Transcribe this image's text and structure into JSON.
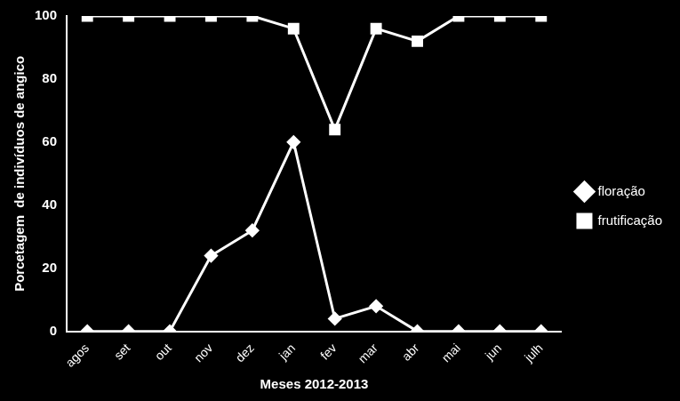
{
  "chart_data": {
    "type": "line",
    "x_label": "Meses 2012-2013",
    "y_label": "Porcetagem  de indivíduos de angico",
    "categories": [
      "agos",
      "set",
      "out",
      "nov",
      "dez",
      "jan",
      "fev",
      "mar",
      "abr",
      "mai",
      "jun",
      "julh"
    ],
    "series": [
      {
        "name": "floração",
        "color": "#ffffff",
        "marker": "diamond",
        "line_style": "solid",
        "values": [
          0,
          0,
          0,
          24,
          32,
          60,
          4,
          8,
          0,
          0,
          0,
          0
        ]
      },
      {
        "name": "frutificação",
        "color": "#ffffff",
        "marker": "square",
        "line_style": "solid",
        "values": [
          100,
          100,
          100,
          100,
          100,
          96,
          64,
          96,
          92,
          100,
          100,
          100
        ]
      }
    ],
    "ylim": [
      0,
      100
    ],
    "yticks": [
      0,
      20,
      40,
      60,
      80,
      100
    ],
    "grid": false,
    "legend": "right"
  }
}
